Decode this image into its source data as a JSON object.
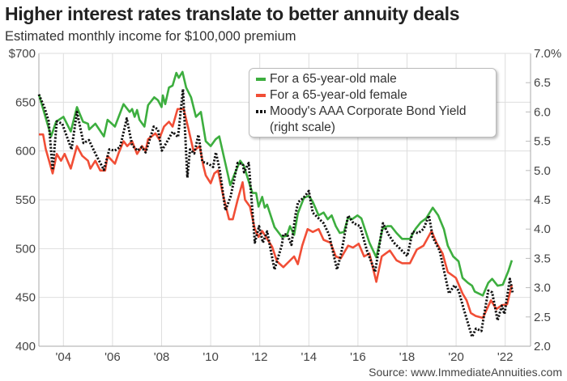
{
  "title": "Higher interest rates translate to better annuity deals",
  "subtitle": "Estimated monthly income for $100,000 premium",
  "source": "Source: www.ImmediateAnnuities.com",
  "chart_data": {
    "type": "line",
    "title": "Higher interest rates translate to better annuity deals",
    "subtitle": "Estimated monthly income for $100,000 premium",
    "x_unit": "year",
    "xlim": [
      2003,
      2022.5
    ],
    "x_ticks": [
      2004,
      2006,
      2008,
      2010,
      2012,
      2014,
      2016,
      2018,
      2020,
      2022
    ],
    "x_tick_labels": [
      "'04",
      "'06",
      "'08",
      "'10",
      "'12",
      "'14",
      "'16",
      "'18",
      "'20",
      "'22"
    ],
    "ylim_left": [
      400,
      700
    ],
    "y_left_ticks": [
      400,
      450,
      500,
      550,
      600,
      650,
      700
    ],
    "y_left_tick_labels": [
      "400",
      "450",
      "500",
      "550",
      "600",
      "650",
      "$700"
    ],
    "ylim_right": [
      2.0,
      7.0
    ],
    "y_right_ticks": [
      2.0,
      2.5,
      3.0,
      3.5,
      4.0,
      4.5,
      5.0,
      5.5,
      6.0,
      6.5,
      7.0
    ],
    "y_right_tick_labels": [
      "2.0",
      "2.5",
      "3.0",
      "3.5",
      "4.0",
      "4.5",
      "5.0",
      "5.5",
      "6.0",
      "6.5",
      "7.0%"
    ],
    "grid": true,
    "legend_position": "top-right",
    "series": [
      {
        "name": "For a 65-year-old male",
        "axis": "left",
        "color": "#3dae3f",
        "style": "solid",
        "points": [
          [
            2003.0,
            658
          ],
          [
            2003.5,
            615
          ],
          [
            2003.7,
            630
          ],
          [
            2004.0,
            635
          ],
          [
            2004.3,
            620
          ],
          [
            2004.55,
            645
          ],
          [
            2004.8,
            630
          ],
          [
            2005.0,
            628
          ],
          [
            2005.05,
            622
          ],
          [
            2005.3,
            628
          ],
          [
            2005.65,
            615
          ],
          [
            2005.8,
            632
          ],
          [
            2006.1,
            625
          ],
          [
            2006.45,
            648
          ],
          [
            2006.7,
            640
          ],
          [
            2006.8,
            643
          ],
          [
            2006.9,
            635
          ],
          [
            2007.0,
            642
          ],
          [
            2007.1,
            632
          ],
          [
            2007.3,
            625
          ],
          [
            2007.45,
            647
          ],
          [
            2007.7,
            655
          ],
          [
            2007.85,
            652
          ],
          [
            2008.0,
            645
          ],
          [
            2008.05,
            657
          ],
          [
            2008.15,
            648
          ],
          [
            2008.3,
            665
          ],
          [
            2008.45,
            667
          ],
          [
            2008.6,
            680
          ],
          [
            2008.7,
            675
          ],
          [
            2008.85,
            681
          ],
          [
            2009.0,
            665
          ],
          [
            2009.2,
            655
          ],
          [
            2009.4,
            635
          ],
          [
            2009.6,
            640
          ],
          [
            2009.8,
            610
          ],
          [
            2010.0,
            605
          ],
          [
            2010.2,
            612
          ],
          [
            2010.35,
            615
          ],
          [
            2010.8,
            565
          ],
          [
            2010.95,
            575
          ],
          [
            2011.2,
            590
          ],
          [
            2011.35,
            585
          ],
          [
            2011.7,
            557
          ],
          [
            2011.85,
            557
          ],
          [
            2011.95,
            543
          ],
          [
            2012.1,
            553
          ],
          [
            2012.2,
            542
          ],
          [
            2012.3,
            545
          ],
          [
            2012.6,
            522
          ],
          [
            2012.9,
            512
          ],
          [
            2013.1,
            513
          ],
          [
            2013.23,
            523
          ],
          [
            2013.4,
            514
          ],
          [
            2013.55,
            536
          ],
          [
            2013.8,
            552
          ],
          [
            2014.0,
            554
          ],
          [
            2014.16,
            548
          ],
          [
            2014.4,
            534
          ],
          [
            2014.6,
            537
          ],
          [
            2014.77,
            530
          ],
          [
            2014.93,
            534
          ],
          [
            2015.1,
            523
          ],
          [
            2015.26,
            516
          ],
          [
            2015.43,
            517
          ],
          [
            2015.6,
            532
          ],
          [
            2015.76,
            530
          ],
          [
            2015.98,
            534
          ],
          [
            2016.14,
            531
          ],
          [
            2016.47,
            506
          ],
          [
            2016.75,
            491
          ],
          [
            2017.0,
            520
          ],
          [
            2017.19,
            523
          ],
          [
            2017.35,
            523
          ],
          [
            2017.57,
            516
          ],
          [
            2017.8,
            510
          ],
          [
            2018.12,
            510
          ],
          [
            2018.34,
            520
          ],
          [
            2018.56,
            527
          ],
          [
            2018.78,
            531
          ],
          [
            2019.05,
            542
          ],
          [
            2019.27,
            534
          ],
          [
            2019.5,
            520
          ],
          [
            2019.66,
            503
          ],
          [
            2019.88,
            492
          ],
          [
            2020.1,
            487
          ],
          [
            2020.26,
            470
          ],
          [
            2020.48,
            465
          ],
          [
            2020.65,
            462
          ],
          [
            2020.76,
            456
          ],
          [
            2021.09,
            452
          ],
          [
            2021.31,
            465
          ],
          [
            2021.47,
            469
          ],
          [
            2021.69,
            462
          ],
          [
            2021.9,
            463
          ],
          [
            2022.13,
            477
          ],
          [
            2022.27,
            488
          ]
        ]
      },
      {
        "name": "For a 65-year-old female",
        "axis": "left",
        "color": "#f14e36",
        "style": "solid",
        "points": [
          [
            2003.0,
            617
          ],
          [
            2003.17,
            617
          ],
          [
            2003.28,
            602
          ],
          [
            2003.56,
            577
          ],
          [
            2003.73,
            597
          ],
          [
            2003.9,
            590
          ],
          [
            2004.05,
            597
          ],
          [
            2004.3,
            582
          ],
          [
            2004.55,
            605
          ],
          [
            2004.77,
            595
          ],
          [
            2005.0,
            590
          ],
          [
            2005.1,
            582
          ],
          [
            2005.3,
            590
          ],
          [
            2005.5,
            580
          ],
          [
            2005.7,
            580
          ],
          [
            2005.8,
            595
          ],
          [
            2006.1,
            587
          ],
          [
            2006.25,
            598
          ],
          [
            2006.45,
            610
          ],
          [
            2006.6,
            605
          ],
          [
            2006.8,
            610
          ],
          [
            2007.0,
            597
          ],
          [
            2007.2,
            605
          ],
          [
            2007.35,
            600
          ],
          [
            2007.45,
            612
          ],
          [
            2007.75,
            618
          ],
          [
            2007.9,
            612
          ],
          [
            2008.1,
            625
          ],
          [
            2008.3,
            630
          ],
          [
            2008.45,
            625
          ],
          [
            2008.65,
            643
          ],
          [
            2008.9,
            643
          ],
          [
            2009.1,
            622
          ],
          [
            2009.3,
            600
          ],
          [
            2009.55,
            605
          ],
          [
            2009.7,
            585
          ],
          [
            2009.8,
            575
          ],
          [
            2010.0,
            567
          ],
          [
            2010.15,
            577
          ],
          [
            2010.3,
            580
          ],
          [
            2010.5,
            555
          ],
          [
            2010.75,
            530
          ],
          [
            2010.9,
            530
          ],
          [
            2011.1,
            550
          ],
          [
            2011.3,
            568
          ],
          [
            2011.4,
            550
          ],
          [
            2011.6,
            543
          ],
          [
            2011.8,
            520
          ],
          [
            2011.95,
            512
          ],
          [
            2012.1,
            518
          ],
          [
            2012.3,
            510
          ],
          [
            2012.5,
            502
          ],
          [
            2012.7,
            487
          ],
          [
            2012.96,
            481
          ],
          [
            2013.2,
            487
          ],
          [
            2013.4,
            492
          ],
          [
            2013.55,
            484
          ],
          [
            2013.73,
            503
          ],
          [
            2013.95,
            520
          ],
          [
            2014.16,
            517
          ],
          [
            2014.4,
            520
          ],
          [
            2014.6,
            509
          ],
          [
            2014.88,
            506
          ],
          [
            2015.1,
            492
          ],
          [
            2015.3,
            490
          ],
          [
            2015.6,
            503
          ],
          [
            2015.8,
            501
          ],
          [
            2016.03,
            505
          ],
          [
            2016.25,
            492
          ],
          [
            2016.47,
            495
          ],
          [
            2016.75,
            466
          ],
          [
            2016.97,
            492
          ],
          [
            2017.13,
            495
          ],
          [
            2017.3,
            498
          ],
          [
            2017.57,
            488
          ],
          [
            2017.8,
            485
          ],
          [
            2018.12,
            485
          ],
          [
            2018.4,
            499
          ],
          [
            2018.67,
            503
          ],
          [
            2019.0,
            518
          ],
          [
            2019.2,
            506
          ],
          [
            2019.45,
            495
          ],
          [
            2019.66,
            476
          ],
          [
            2019.99,
            470
          ],
          [
            2020.26,
            454
          ],
          [
            2020.43,
            447
          ],
          [
            2020.6,
            434
          ],
          [
            2020.8,
            431
          ],
          [
            2021.09,
            429
          ],
          [
            2021.42,
            447
          ],
          [
            2021.64,
            438
          ],
          [
            2021.86,
            442
          ],
          [
            2022.08,
            443
          ],
          [
            2022.27,
            463
          ]
        ]
      },
      {
        "name": "Moody's AAA Corporate Bond Yield (right scale)",
        "axis": "right",
        "color": "#111111",
        "style": "dotted",
        "points": [
          [
            2003.0,
            6.3
          ],
          [
            2003.23,
            6.07
          ],
          [
            2003.4,
            5.84
          ],
          [
            2003.56,
            5.01
          ],
          [
            2003.73,
            5.84
          ],
          [
            2003.95,
            5.8
          ],
          [
            2004.33,
            5.36
          ],
          [
            2004.55,
            6.0
          ],
          [
            2004.82,
            5.47
          ],
          [
            2005.04,
            5.52
          ],
          [
            2005.3,
            5.29
          ],
          [
            2005.65,
            5.01
          ],
          [
            2005.87,
            5.36
          ],
          [
            2006.09,
            5.34
          ],
          [
            2006.31,
            5.4
          ],
          [
            2006.58,
            5.89
          ],
          [
            2006.8,
            5.43
          ],
          [
            2007.02,
            5.34
          ],
          [
            2007.19,
            5.4
          ],
          [
            2007.35,
            5.31
          ],
          [
            2007.68,
            5.75
          ],
          [
            2007.85,
            5.7
          ],
          [
            2008.01,
            5.34
          ],
          [
            2008.23,
            5.5
          ],
          [
            2008.45,
            5.66
          ],
          [
            2008.67,
            5.57
          ],
          [
            2008.87,
            6.39
          ],
          [
            2009.05,
            4.88
          ],
          [
            2009.16,
            5.36
          ],
          [
            2009.33,
            5.29
          ],
          [
            2009.5,
            5.61
          ],
          [
            2009.66,
            5.15
          ],
          [
            2009.93,
            5.11
          ],
          [
            2010.1,
            5.06
          ],
          [
            2010.21,
            5.31
          ],
          [
            2010.37,
            5.01
          ],
          [
            2010.6,
            4.32
          ],
          [
            2010.81,
            4.55
          ],
          [
            2011.1,
            5.13
          ],
          [
            2011.31,
            5.11
          ],
          [
            2011.36,
            4.97
          ],
          [
            2011.55,
            5.13
          ],
          [
            2011.8,
            3.77
          ],
          [
            2011.97,
            4.05
          ],
          [
            2012.13,
            3.77
          ],
          [
            2012.3,
            3.96
          ],
          [
            2012.6,
            3.31
          ],
          [
            2012.9,
            3.73
          ],
          [
            2012.96,
            3.91
          ],
          [
            2013.12,
            3.91
          ],
          [
            2013.29,
            3.73
          ],
          [
            2013.45,
            4.23
          ],
          [
            2013.56,
            4.46
          ],
          [
            2013.78,
            4.53
          ],
          [
            2014.0,
            4.65
          ],
          [
            2014.16,
            4.28
          ],
          [
            2014.38,
            4.19
          ],
          [
            2014.6,
            4.1
          ],
          [
            2014.82,
            3.91
          ],
          [
            2015.15,
            3.31
          ],
          [
            2015.32,
            3.59
          ],
          [
            2015.6,
            4.23
          ],
          [
            2015.82,
            4.1
          ],
          [
            2016.09,
            4.05
          ],
          [
            2016.37,
            3.63
          ],
          [
            2016.7,
            3.27
          ],
          [
            2017.02,
            4.1
          ],
          [
            2017.24,
            3.91
          ],
          [
            2017.46,
            3.77
          ],
          [
            2017.68,
            3.68
          ],
          [
            2018.01,
            3.54
          ],
          [
            2018.23,
            3.96
          ],
          [
            2018.45,
            3.93
          ],
          [
            2018.67,
            4.0
          ],
          [
            2018.89,
            4.23
          ],
          [
            2019.05,
            3.86
          ],
          [
            2019.33,
            3.63
          ],
          [
            2019.71,
            2.9
          ],
          [
            2019.93,
            3.04
          ],
          [
            2020.1,
            2.95
          ],
          [
            2020.32,
            2.62
          ],
          [
            2020.65,
            2.16
          ],
          [
            2020.81,
            2.3
          ],
          [
            2021.03,
            2.26
          ],
          [
            2021.31,
            2.95
          ],
          [
            2021.47,
            2.92
          ],
          [
            2021.69,
            2.44
          ],
          [
            2021.86,
            2.69
          ],
          [
            2021.97,
            2.55
          ],
          [
            2022.19,
            3.15
          ],
          [
            2022.3,
            2.92
          ]
        ]
      }
    ]
  },
  "legend": {
    "items": [
      "For a 65-year-old male",
      "For a 65-year-old female",
      "Moody's AAA Corporate Bond Yield"
    ],
    "note": "(right scale)"
  }
}
